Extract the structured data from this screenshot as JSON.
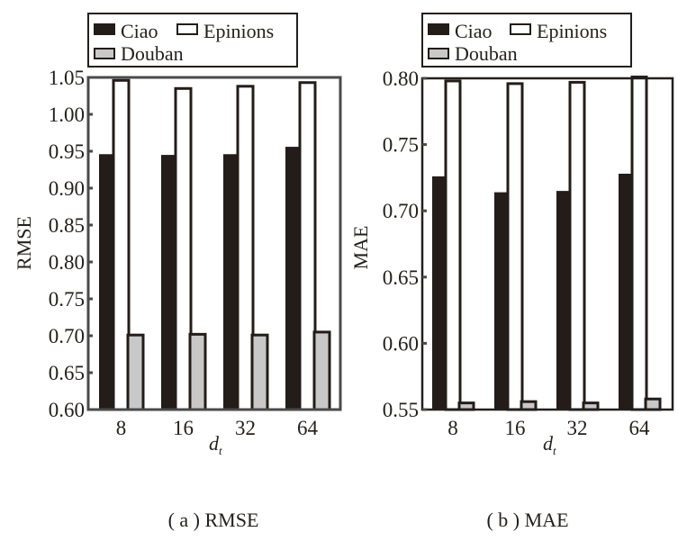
{
  "chart_data": [
    {
      "type": "bar",
      "caption": "( a ) RMSE",
      "title": "",
      "xlabel": "d",
      "xlabel_subscript": "t",
      "ylabel": "RMSE",
      "categories": [
        "8",
        "16",
        "32",
        "64"
      ],
      "ylim": [
        0.6,
        1.05
      ],
      "yticks": [
        "0.60",
        "0.65",
        "0.70",
        "0.75",
        "0.80",
        "0.85",
        "0.90",
        "0.95",
        "1.00",
        "1.05"
      ],
      "grid": false,
      "legend_position": "top",
      "legend": [
        "Ciao",
        "Epinions",
        "Douban"
      ],
      "series": [
        {
          "name": "Ciao",
          "color": "#231c19",
          "values": [
            0.946,
            0.945,
            0.946,
            0.956
          ]
        },
        {
          "name": "Epinions",
          "color": "#ffffff",
          "values": [
            1.046,
            1.035,
            1.038,
            1.043
          ]
        },
        {
          "name": "Douban",
          "color": "#c8c8c8",
          "values": [
            0.701,
            0.702,
            0.701,
            0.705
          ]
        }
      ]
    },
    {
      "type": "bar",
      "caption": "( b ) MAE",
      "title": "",
      "xlabel": "d",
      "xlabel_subscript": "t",
      "ylabel": "MAE",
      "categories": [
        "8",
        "16",
        "32",
        "64"
      ],
      "ylim": [
        0.55,
        0.8
      ],
      "yticks": [
        "0.55",
        "0.60",
        "0.65",
        "0.70",
        "0.75",
        "0.80"
      ],
      "grid": false,
      "legend_position": "top",
      "legend": [
        "Ciao",
        "Epinions",
        "Douban"
      ],
      "series": [
        {
          "name": "Ciao",
          "color": "#231c19",
          "values": [
            0.726,
            0.714,
            0.715,
            0.728
          ]
        },
        {
          "name": "Epinions",
          "color": "#ffffff",
          "values": [
            0.798,
            0.796,
            0.797,
            0.801
          ]
        },
        {
          "name": "Douban",
          "color": "#c8c8c8",
          "values": [
            0.555,
            0.556,
            0.555,
            0.558
          ]
        }
      ]
    }
  ]
}
